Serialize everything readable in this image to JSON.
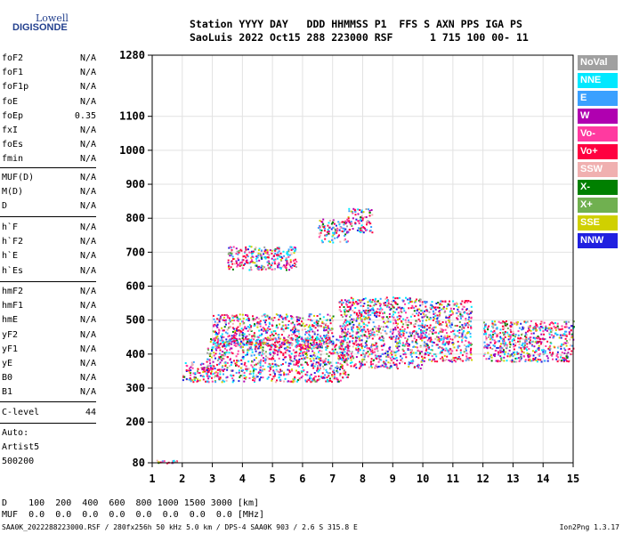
{
  "logo": {
    "line1": "Lowell",
    "line2": "DIGISONDE"
  },
  "header": {
    "line1": "Station YYYY DAY   DDD HHMMSS P1  FFS S AXN PPS IGA PS",
    "line2": "SaoLuis 2022 Oct15 288 223000 RSF      1 715 100 00- 11"
  },
  "params": {
    "group1": [
      {
        "name": "foF2",
        "value": "N/A"
      },
      {
        "name": "foF1",
        "value": "N/A"
      },
      {
        "name": "foF1p",
        "value": "N/A"
      },
      {
        "name": "foE",
        "value": "N/A"
      },
      {
        "name": "foEp",
        "value": "0.35"
      },
      {
        "name": "fxI",
        "value": "N/A"
      },
      {
        "name": "foEs",
        "value": "N/A"
      },
      {
        "name": "fmin",
        "value": "N/A"
      }
    ],
    "group2": [
      {
        "name": "MUF(D)",
        "value": "N/A"
      },
      {
        "name": "M(D)",
        "value": "N/A"
      },
      {
        "name": "D",
        "value": "N/A"
      }
    ],
    "group3": [
      {
        "name": "h`F",
        "value": "N/A"
      },
      {
        "name": "h`F2",
        "value": "N/A"
      },
      {
        "name": "h`E",
        "value": "N/A"
      },
      {
        "name": "h`Es",
        "value": "N/A"
      }
    ],
    "group4": [
      {
        "name": "hmF2",
        "value": "N/A"
      },
      {
        "name": "hmF1",
        "value": "N/A"
      },
      {
        "name": "hmE",
        "value": "N/A"
      },
      {
        "name": "yF2",
        "value": "N/A"
      },
      {
        "name": "yF1",
        "value": "N/A"
      },
      {
        "name": "yE",
        "value": "N/A"
      },
      {
        "name": "B0",
        "value": "N/A"
      },
      {
        "name": "B1",
        "value": "N/A"
      }
    ],
    "clevel": {
      "name": "C-level",
      "value": "44"
    }
  },
  "auto": {
    "line1": "Auto:",
    "line2": "Artist5",
    "line3": "500200"
  },
  "legend": [
    {
      "label": "NoVal",
      "color": "#a0a0a0"
    },
    {
      "label": "NNE",
      "color": "#00e8ff"
    },
    {
      "label": "E",
      "color": "#3aa0ff"
    },
    {
      "label": "W",
      "color": "#b000b0"
    },
    {
      "label": "Vo-",
      "color": "#ff3aa0"
    },
    {
      "label": "Vo+",
      "color": "#ff0040"
    },
    {
      "label": "SSW",
      "color": "#f0b0b0"
    },
    {
      "label": "X-",
      "color": "#008000"
    },
    {
      "label": "X+",
      "color": "#70b050"
    },
    {
      "label": "SSE",
      "color": "#d0d000"
    },
    {
      "label": "NNW",
      "color": "#2020e0"
    }
  ],
  "bottom": {
    "d_line": "D    100  200  400  600  800 1000 1500 3000 [km]",
    "muf_line": "MUF  0.0  0.0  0.0  0.0  0.0  0.0  0.0  0.0 [MHz]"
  },
  "footer": {
    "left": "SAA0K_2022288223000.RSF / 280fx256h 50 kHz 5.0 km / DPS-4 SAA0K 903 / 2.6 S 315.8 E",
    "right": "Ion2Png 1.3.17"
  },
  "chart_data": {
    "type": "scatter",
    "x_ticks": [
      "1",
      "2",
      "3",
      "4",
      "5",
      "6",
      "7",
      "8",
      "9",
      "10",
      "11",
      "12",
      "13",
      "14",
      "15"
    ],
    "y_ticks": [
      "80",
      "200",
      "300",
      "400",
      "500",
      "600",
      "700",
      "800",
      "900",
      "1000",
      "1100",
      "1280"
    ],
    "xlim": [
      1,
      15
    ],
    "ylim": [
      80,
      1280
    ],
    "grid": true,
    "clusters": [
      {
        "x": [
          1.0,
          1.8
        ],
        "y": [
          80,
          90
        ]
      },
      {
        "x": [
          2.0,
          3.0
        ],
        "y": [
          320,
          380
        ]
      },
      {
        "x": [
          2.8,
          7.5
        ],
        "y": [
          320,
          450
        ]
      },
      {
        "x": [
          3.0,
          7.0
        ],
        "y": [
          420,
          520
        ]
      },
      {
        "x": [
          7.2,
          10.0
        ],
        "y": [
          360,
          570
        ]
      },
      {
        "x": [
          10.0,
          11.6
        ],
        "y": [
          380,
          560
        ]
      },
      {
        "x": [
          12.0,
          15.0
        ],
        "y": [
          380,
          500
        ]
      },
      {
        "x": [
          3.5,
          5.8
        ],
        "y": [
          650,
          720
        ]
      },
      {
        "x": [
          6.5,
          7.5
        ],
        "y": [
          730,
          800
        ]
      },
      {
        "x": [
          7.5,
          8.3
        ],
        "y": [
          760,
          830
        ]
      }
    ]
  }
}
